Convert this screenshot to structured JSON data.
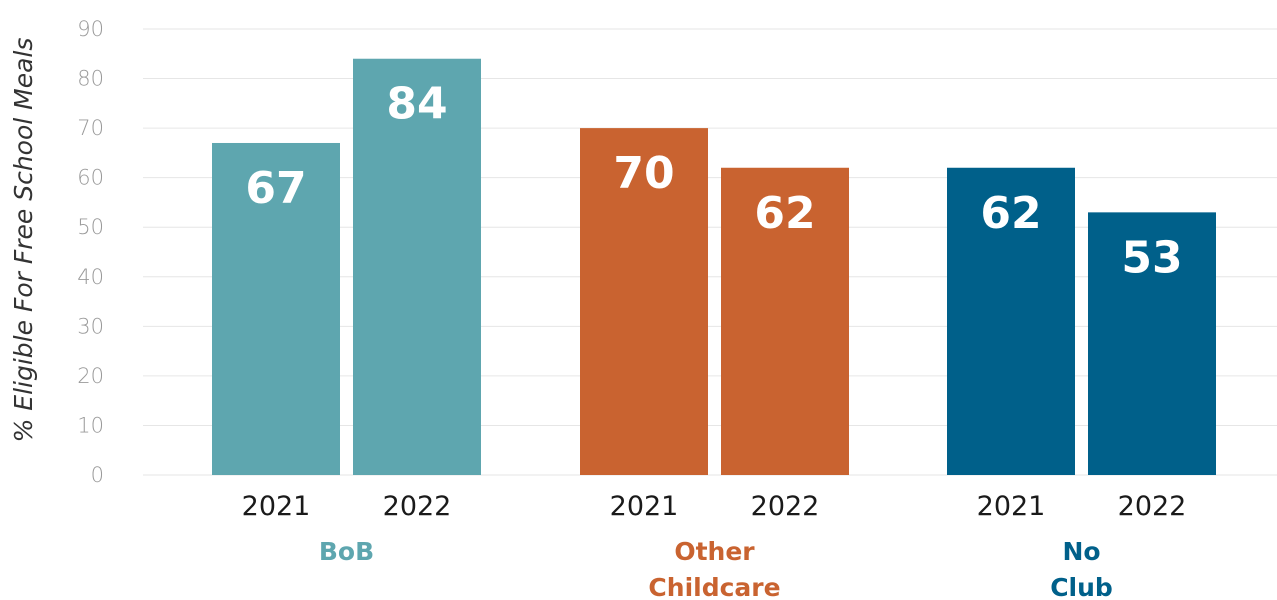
{
  "chart_data": {
    "type": "bar",
    "ylabel": "% Eligible For Free School Meals",
    "ylim": [
      0,
      90
    ],
    "yticks": [
      0,
      10,
      20,
      30,
      40,
      50,
      60,
      70,
      80,
      90
    ],
    "grid": true,
    "groups": [
      {
        "label_lines": [
          "BoB"
        ],
        "color": "#5ea6af",
        "bars": [
          {
            "category": "2021",
            "value": 67
          },
          {
            "category": "2022",
            "value": 84
          }
        ]
      },
      {
        "label_lines": [
          "Other",
          "Childcare"
        ],
        "color": "#c96330",
        "bars": [
          {
            "category": "2021",
            "value": 70
          },
          {
            "category": "2022",
            "value": 62
          }
        ]
      },
      {
        "label_lines": [
          "No",
          "Club"
        ],
        "color": "#00608a",
        "bars": [
          {
            "category": "2021",
            "value": 62
          },
          {
            "category": "2022",
            "value": 53
          }
        ]
      }
    ]
  }
}
